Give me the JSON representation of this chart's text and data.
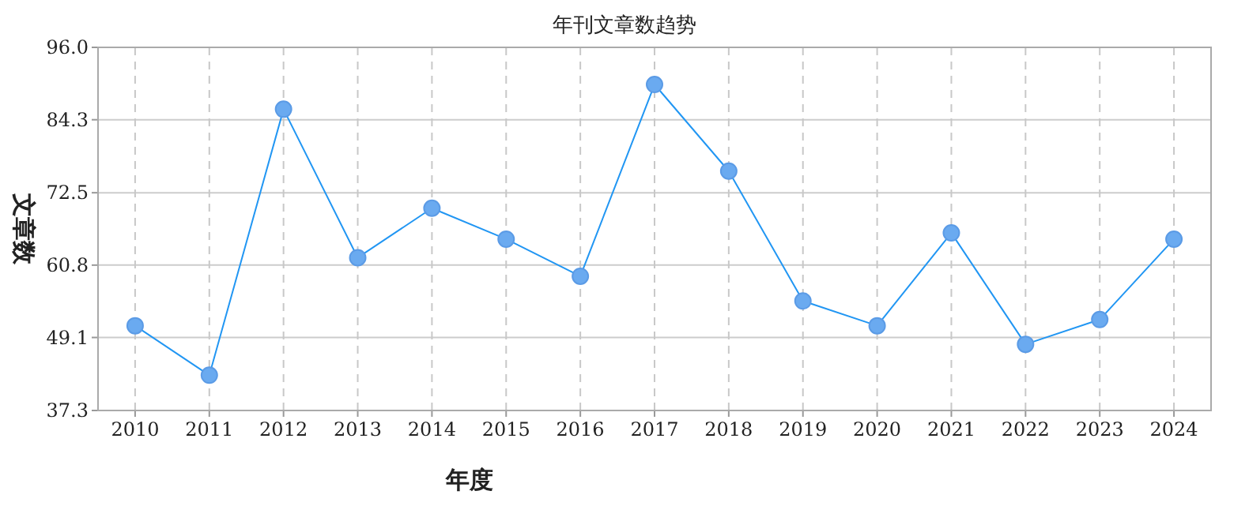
{
  "chart_data": {
    "type": "line",
    "title": "年刊文章数趋势",
    "xlabel": "年度",
    "ylabel": "文章数",
    "categories": [
      "2010",
      "2011",
      "2012",
      "2013",
      "2014",
      "2015",
      "2016",
      "2017",
      "2018",
      "2019",
      "2020",
      "2021",
      "2022",
      "2023",
      "2024"
    ],
    "series": [
      {
        "color": "#2196f3",
        "values": [
          51,
          43,
          86,
          62,
          70,
          65,
          59,
          90,
          76,
          55,
          51,
          66,
          48,
          52,
          65
        ]
      }
    ],
    "ylim": [
      37.3,
      96.0
    ],
    "yticks": [
      {
        "value": 37.3,
        "label": "37.3"
      },
      {
        "value": 49.1,
        "label": "49.1"
      },
      {
        "value": 60.8,
        "label": "60.8"
      },
      {
        "value": 72.5,
        "label": "72.5"
      },
      {
        "value": 84.3,
        "label": "84.3"
      },
      {
        "value": 96.0,
        "label": "96.0"
      }
    ],
    "grid": true,
    "marker": "circle",
    "line_style": "solid"
  }
}
